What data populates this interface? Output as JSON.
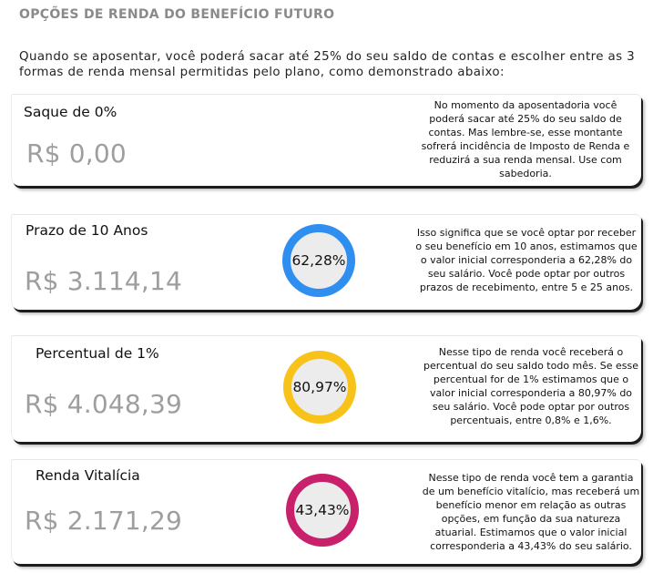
{
  "page": {
    "title": "OPÇÕES DE RENDA DO BENEFÍCIO FUTURO",
    "intro": "Quando se aposentar, você poderá sacar até 25% do seu saldo de contas e escolher entre as 3 formas de renda mensal permitidas pelo plano, como demonstrado abaixo:"
  },
  "cards": [
    {
      "name": "Saque de 0%",
      "value": "R$ 0,00",
      "description": "No momento da aposentadoria você poderá sacar até 25% do seu saldo de contas. Mas lembre-se, esse montante sofrerá incidência de Imposto de Renda e reduzirá a sua renda mensal. Use com sabedoria."
    },
    {
      "name": "Prazo de 10 Anos",
      "value": "R$ 3.114,14",
      "percent": "62,28%",
      "ring_color": "#2f8ff0",
      "description": "Isso significa que se você optar por receber o seu benefício em 10 anos, estimamos que o valor inicial corresponderia a 62,28% do seu salário. Você pode optar por outros prazos de recebimento, entre 5 e 25 anos."
    },
    {
      "name": "Percentual de 1%",
      "value": "R$ 4.048,39",
      "percent": "80,97%",
      "ring_color": "#f7c21a",
      "description": "Nesse tipo de renda você receberá o percentual do seu saldo todo mês. Se esse percentual for de 1% estimamos que o valor inicial corresponderia a 80,97% do seu salário. Você pode optar por outros percentuais, entre 0,8% e 1,6%."
    },
    {
      "name": "Renda Vitalícia",
      "value": "R$ 2.171,29",
      "percent": "43,43%",
      "ring_color": "#c8206b",
      "description": "Nesse tipo de renda você tem a garantia de um benefício vitalício, mas receberá um benefício menor em relação as outras opções, em função da sua natureza atuarial. Estimamos que o valor inicial corresponderia a 43,43% do seu salário."
    }
  ]
}
